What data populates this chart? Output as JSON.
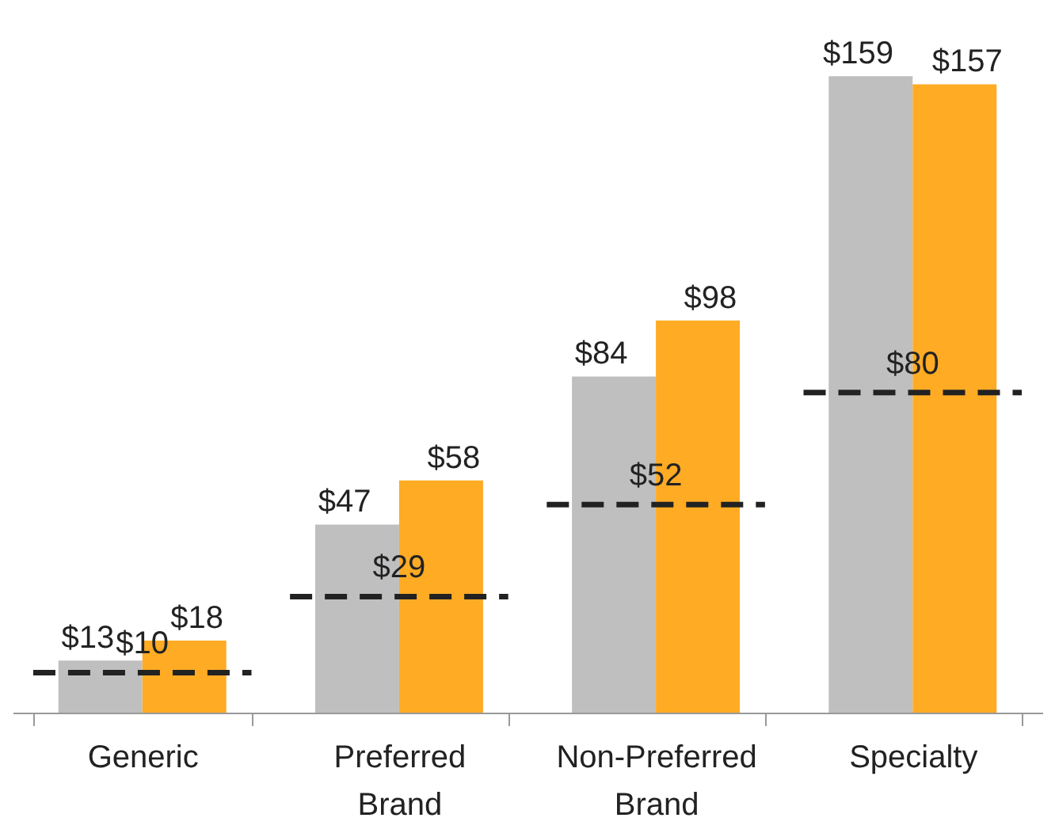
{
  "chart_data": {
    "type": "bar",
    "categories": [
      "Generic",
      "Preferred Brand",
      "Non-Preferred Brand",
      "Specialty"
    ],
    "series": [
      {
        "color": "#bfbfbf",
        "values": [
          13,
          47,
          84,
          159
        ],
        "value_labels": [
          "$13",
          "$47",
          "$84",
          "$159"
        ]
      },
      {
        "color": "#ffab24",
        "values": [
          18,
          58,
          98,
          157
        ],
        "value_labels": [
          "$18",
          "$58",
          "$98",
          "$157"
        ]
      }
    ],
    "ref_lines": [
      {
        "axis": "y",
        "value": 10,
        "label": "$10",
        "color": "#222222",
        "line_style": "dashed"
      },
      {
        "axis": "y",
        "value": 29,
        "label": "$29",
        "color": "#222222",
        "line_style": "dashed"
      },
      {
        "axis": "y",
        "value": 52,
        "label": "$52",
        "color": "#222222",
        "line_style": "dashed"
      },
      {
        "axis": "y",
        "value": 80,
        "label": "$80",
        "color": "#222222",
        "line_style": "dashed"
      }
    ],
    "grid": false
  }
}
